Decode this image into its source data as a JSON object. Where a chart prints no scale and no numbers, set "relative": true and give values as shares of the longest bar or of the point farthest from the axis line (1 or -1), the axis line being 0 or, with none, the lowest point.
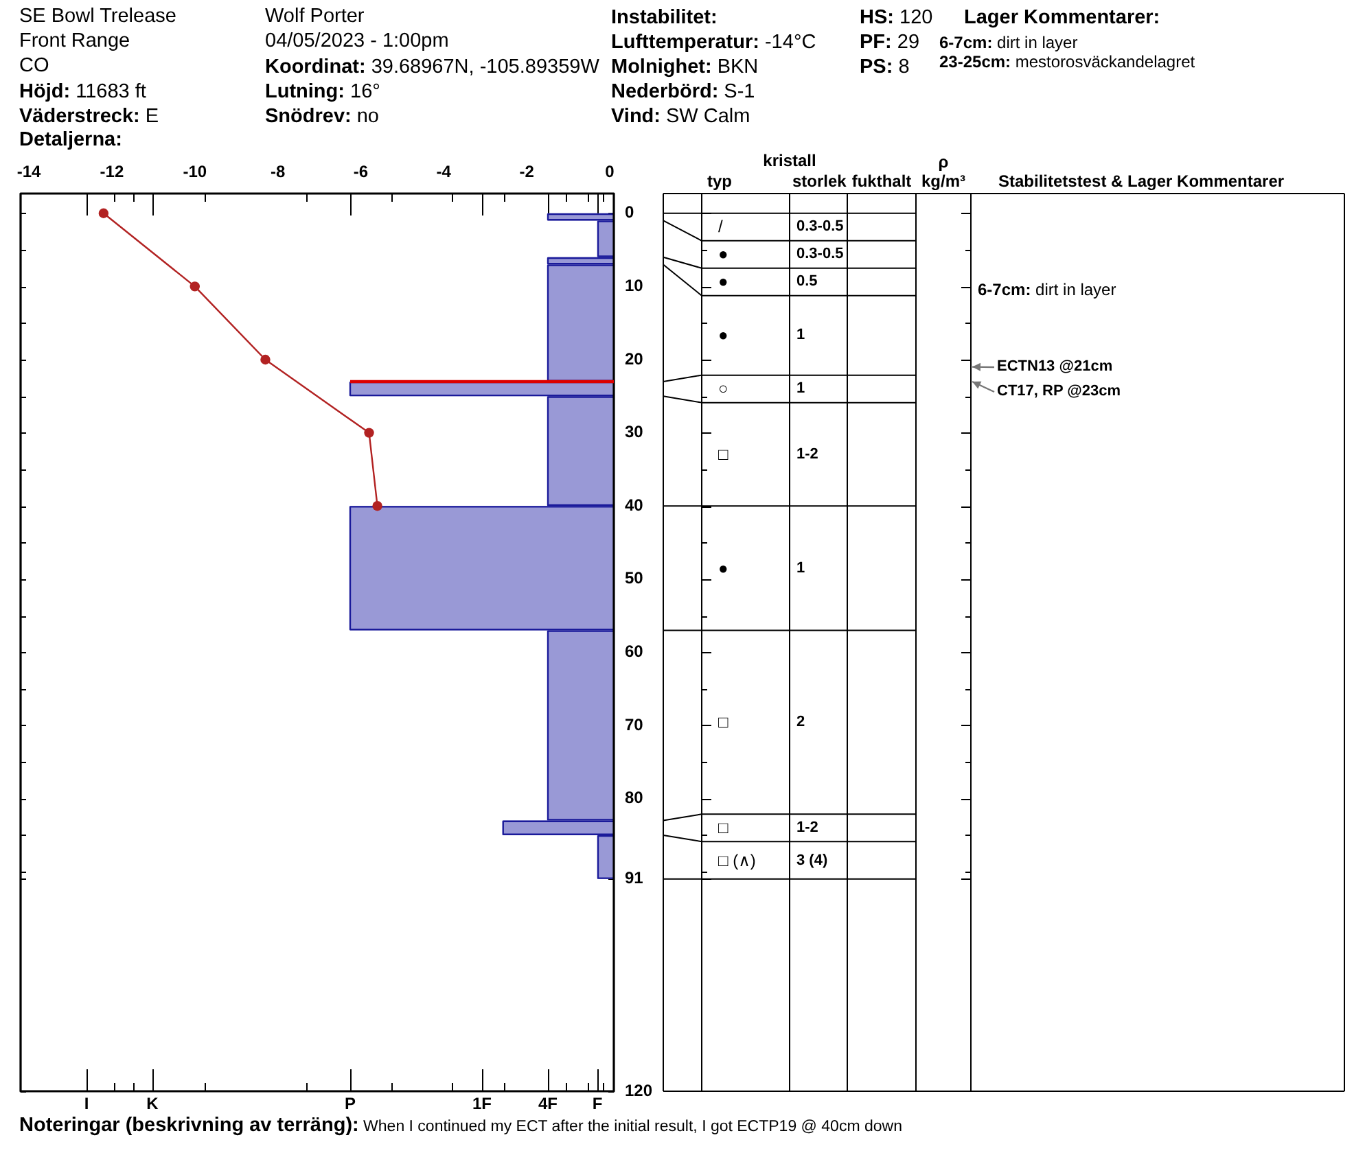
{
  "chart_data": [
    {
      "type": "histogram",
      "orientation": "horizontal",
      "relative": true,
      "annotations": [
        "SE Bowl Trelease",
        "Front Range",
        "CO",
        "Höjd: 11683 ft",
        "Väderstreck: E",
        "Detaljerna:",
        "Wolf Porter",
        "04/05/2023 - 1:00pm",
        "Koordinat: 39.68967N, -105.89359W",
        "Lutning: 16°",
        "Snödrev: no",
        "Instabilitet:",
        "Lufttemperatur: -14°C",
        "Molnighet: BKN",
        "Nederbörd: S-1",
        "Vind: SW Calm",
        "HS: 120",
        "PF: 29",
        "PS: 8",
        "Lager Kommentarer:",
        "6-7cm: dirt in layer",
        "23-25cm: mestorosväckandelagret",
        "Noteringar (beskrivning av terräng): When I continued my ECT after the initial result, I got ECTP19 @ 40cm down",
        "ECTN13 @21cm",
        "CT17, RP @23cm",
        "I",
        "K",
        "P",
        "1F",
        "4F",
        "F"
      ],
      "bins": [
        0,
        1,
        6,
        7,
        23,
        25,
        40,
        57,
        83,
        85,
        91
      ],
      "series": [
        {
          "color": "#9999d6",
          "values": [
            -0.25,
            -0.06,
            -0.25,
            -0.25,
            -1,
            -0.25,
            -1,
            -0.25,
            -0.42,
            -0.06
          ]
        },
        {
          "type": "line",
          "color": "#dd0000",
          "marker": "none",
          "x": [
            23,
            23
          ],
          "values": [
            -1,
            0
          ]
        }
      ],
      "ylim": [
        120,
        -2.7
      ],
      "yticks": [
        0,
        {
          "value": 5,
          "label": null
        },
        10,
        {
          "value": 15,
          "label": null
        },
        20,
        {
          "value": 25,
          "label": null
        },
        30,
        {
          "value": 35,
          "label": null
        },
        40,
        {
          "value": 45,
          "label": null
        },
        50,
        {
          "value": 55,
          "label": null
        },
        60,
        {
          "value": 65,
          "label": null
        },
        70,
        {
          "value": 75,
          "label": null
        },
        80,
        {
          "value": 85,
          "label": null
        },
        {
          "value": 90,
          "label": null
        },
        91,
        120
      ]
    },
    {
      "type": "line",
      "tick_labels": "x",
      "series": [
        {
          "color": "#b22222",
          "marker": "circle",
          "x": [
            -12.2,
            -10,
            -8.3,
            -5.8,
            -5.6
          ],
          "values": [
            0,
            10,
            20,
            30,
            40
          ]
        }
      ],
      "xlim": [
        -14.2,
        0.1
      ],
      "xticks": [
        -14,
        -12,
        -10,
        -8,
        -6,
        -4,
        -2,
        0
      ],
      "ylim": [
        120,
        -2.7
      ],
      "yticks": [
        0,
        {
          "value": 5,
          "label": null
        },
        10,
        {
          "value": 15,
          "label": null
        },
        20,
        {
          "value": 25,
          "label": null
        },
        30,
        {
          "value": 35,
          "label": null
        },
        40,
        {
          "value": 45,
          "label": null
        },
        50,
        {
          "value": 55,
          "label": null
        },
        60,
        {
          "value": 65,
          "label": null
        },
        70,
        {
          "value": 75,
          "label": null
        },
        80,
        {
          "value": 85,
          "label": null
        },
        {
          "value": 90,
          "label": null
        },
        91,
        120
      ]
    },
    {
      "type": "other",
      "title": "kristall",
      "categories": [
        "typ",
        "storlek",
        "fukthalt",
        "ρ kg/m³",
        "Stabilitetstest & Lager Kommentarer"
      ],
      "cell_labels": [
        [
          "/",
          "0.3-0.5"
        ],
        [
          "●",
          "0.3-0.5"
        ],
        [
          "●",
          "0.5"
        ],
        [
          "●",
          "1"
        ],
        [
          "○",
          "1"
        ],
        [
          "□",
          "1-2"
        ],
        [
          "●",
          "1"
        ],
        [
          "□",
          "2"
        ],
        [
          "□",
          "1-2"
        ],
        [
          "□ (∧)",
          "3 (4)"
        ]
      ],
      "annotations": [
        "6-7cm: dirt in layer"
      ]
    }
  ]
}
